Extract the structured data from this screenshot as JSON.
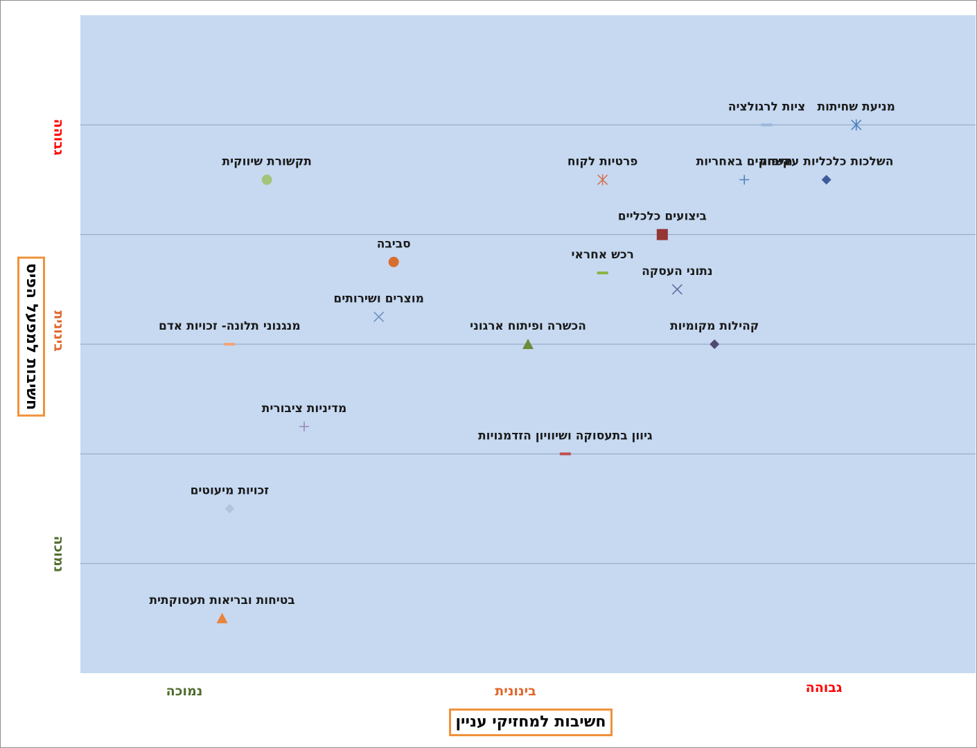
{
  "chart_data": {
    "type": "scatter",
    "xlabel": "חשיבות למחזיקי עניין",
    "ylabel": "חשיבות למפעל הפיס",
    "x_levels": [
      {
        "label": "נמוכה",
        "color": "#4e6b2b"
      },
      {
        "label": "בינונית",
        "color": "#e0662a"
      },
      {
        "label": "גבוהה",
        "color": "#ff0000"
      }
    ],
    "y_levels": [
      {
        "label": "גבוהה",
        "color": "#ff0000"
      },
      {
        "label": "בינונית",
        "color": "#e0662a"
      },
      {
        "label": "נמוכה",
        "color": "#4e6b2b"
      }
    ],
    "xlim": [
      0,
      12
    ],
    "ylim": [
      0,
      6
    ],
    "grid": {
      "horizontal": true,
      "vertical": false,
      "values": [
        1,
        2,
        3,
        4,
        5
      ]
    },
    "plot_background": "#c6d9f1",
    "points": [
      {
        "label": "מניעת שחיתות",
        "x": 10.4,
        "y": 5.0,
        "marker": "asterisk",
        "color": "#4f81bd"
      },
      {
        "label": "ציות לרגולציה",
        "x": 9.2,
        "y": 5.0,
        "marker": "dash",
        "color": "#9bb7d9"
      },
      {
        "label": "השלכות כלכליות עקיפות",
        "x": 10.0,
        "y": 4.5,
        "marker": "diamond",
        "color": "#3f5a99"
      },
      {
        "label": "משחקים באחריות",
        "x": 8.9,
        "y": 4.5,
        "marker": "plus",
        "color": "#4f81bd"
      },
      {
        "label": "פרטיות לקוח",
        "x": 7.0,
        "y": 4.5,
        "marker": "asterisk",
        "color": "#d8735a"
      },
      {
        "label": "תקשורת שיווקית",
        "x": 2.5,
        "y": 4.5,
        "marker": "circle",
        "color": "#a3c47b"
      },
      {
        "label": "ביצועים כלכליים",
        "x": 7.8,
        "y": 4.0,
        "marker": "square",
        "color": "#943634"
      },
      {
        "label": "סביבה",
        "x": 4.2,
        "y": 3.75,
        "marker": "circle",
        "color": "#d76d2e"
      },
      {
        "label": "רכש אחראי",
        "x": 7.0,
        "y": 3.65,
        "marker": "dash",
        "color": "#8db33f"
      },
      {
        "label": "נתוני העסקה",
        "x": 8.0,
        "y": 3.5,
        "marker": "x",
        "color": "#5b6da0"
      },
      {
        "label": "מוצרים ושירותים",
        "x": 4.0,
        "y": 3.25,
        "marker": "x",
        "color": "#6f8fc1"
      },
      {
        "label": "מנגנוני תלונה- זכויות אדם",
        "x": 2.0,
        "y": 3.0,
        "marker": "dash",
        "color": "#f3a37a"
      },
      {
        "label": "הכשרה ופיתוח ארגוני",
        "x": 6.0,
        "y": 3.0,
        "marker": "triangle",
        "color": "#6e8b3d"
      },
      {
        "label": "קהילות מקומיות",
        "x": 8.5,
        "y": 3.0,
        "marker": "diamond",
        "color": "#4f4a73"
      },
      {
        "label": "מדיניות ציבורית",
        "x": 3.0,
        "y": 2.25,
        "marker": "plus",
        "color": "#9a85b8"
      },
      {
        "label": "גיוון בתעסוקה ושיוויון הזדמנויות",
        "x": 6.5,
        "y": 2.0,
        "marker": "dash",
        "color": "#c0504d"
      },
      {
        "label": "זכויות מיעוטים",
        "x": 2.0,
        "y": 1.5,
        "marker": "diamond",
        "color": "#b3c3d9"
      },
      {
        "label": "בטיחות ובריאות תעסוקתית",
        "x": 1.9,
        "y": 0.5,
        "marker": "triangle",
        "color": "#e8833a"
      }
    ]
  }
}
